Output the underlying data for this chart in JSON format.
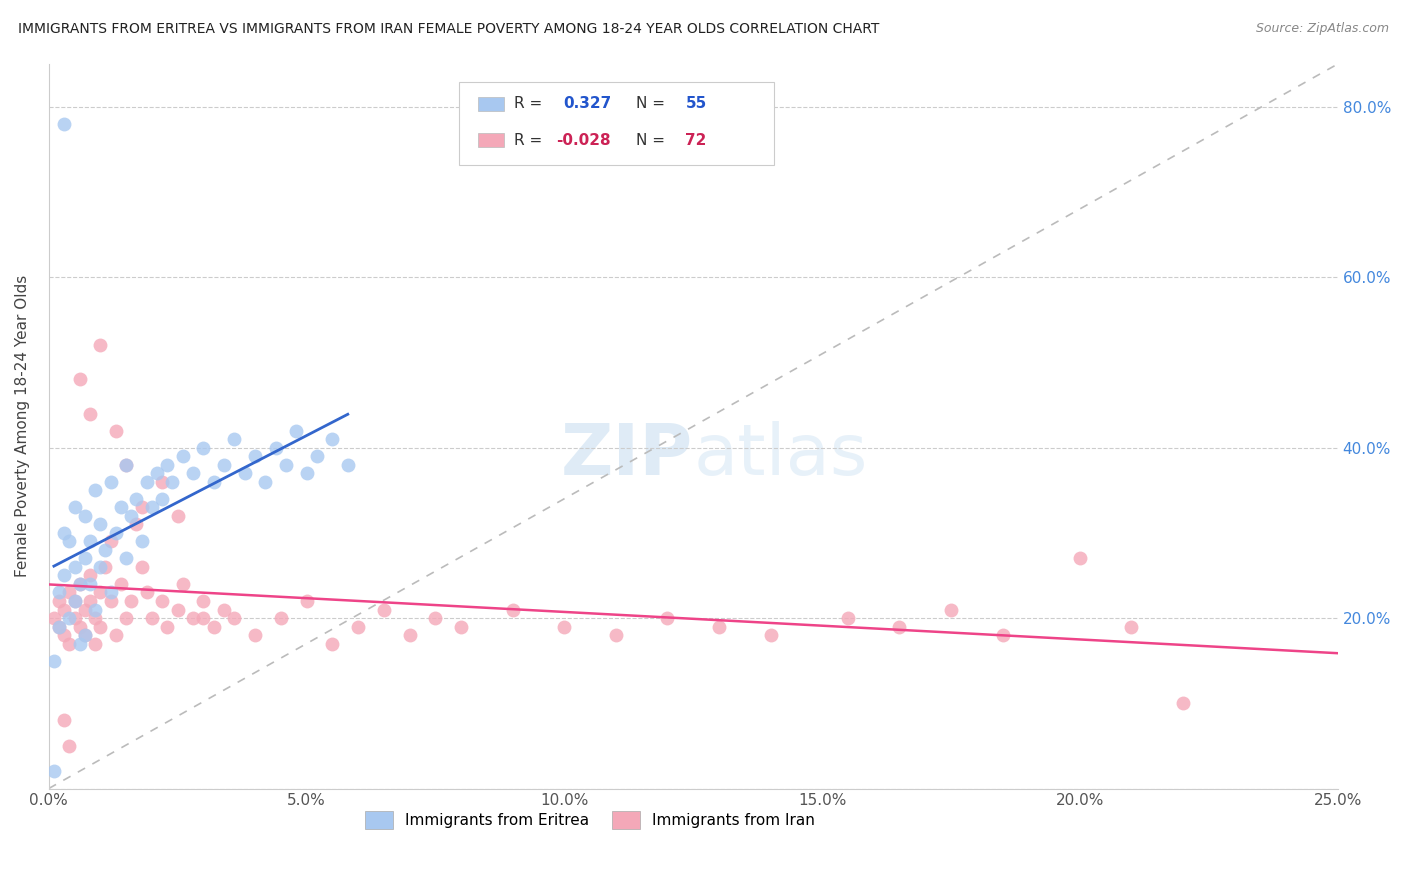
{
  "title": "IMMIGRANTS FROM ERITREA VS IMMIGRANTS FROM IRAN FEMALE POVERTY AMONG 18-24 YEAR OLDS CORRELATION CHART",
  "source": "Source: ZipAtlas.com",
  "ylabel": "Female Poverty Among 18-24 Year Olds",
  "xlim": [
    0.0,
    0.25
  ],
  "ylim": [
    0.0,
    0.85
  ],
  "eritrea_color": "#A8C8F0",
  "iran_color": "#F4A8B8",
  "eritrea_line_color": "#3366CC",
  "iran_line_color": "#EE4488",
  "diag_line_color": "#BBBBBB",
  "legend_eritrea_R": "0.327",
  "legend_eritrea_N": "55",
  "legend_iran_R": "-0.028",
  "legend_iran_N": "72",
  "background_color": "#FFFFFF",
  "eritrea_x": [
    0.003,
    0.001,
    0.002,
    0.002,
    0.003,
    0.003,
    0.004,
    0.004,
    0.005,
    0.005,
    0.005,
    0.006,
    0.006,
    0.007,
    0.007,
    0.007,
    0.008,
    0.008,
    0.009,
    0.009,
    0.01,
    0.01,
    0.011,
    0.012,
    0.012,
    0.013,
    0.014,
    0.015,
    0.015,
    0.016,
    0.017,
    0.018,
    0.019,
    0.02,
    0.021,
    0.022,
    0.023,
    0.024,
    0.026,
    0.028,
    0.03,
    0.032,
    0.034,
    0.036,
    0.038,
    0.04,
    0.042,
    0.044,
    0.046,
    0.048,
    0.05,
    0.052,
    0.055,
    0.058,
    0.001
  ],
  "eritrea_y": [
    0.78,
    0.02,
    0.19,
    0.23,
    0.25,
    0.3,
    0.2,
    0.29,
    0.22,
    0.26,
    0.33,
    0.24,
    0.17,
    0.27,
    0.32,
    0.18,
    0.24,
    0.29,
    0.21,
    0.35,
    0.26,
    0.31,
    0.28,
    0.23,
    0.36,
    0.3,
    0.33,
    0.27,
    0.38,
    0.32,
    0.34,
    0.29,
    0.36,
    0.33,
    0.37,
    0.34,
    0.38,
    0.36,
    0.39,
    0.37,
    0.4,
    0.36,
    0.38,
    0.41,
    0.37,
    0.39,
    0.36,
    0.4,
    0.38,
    0.42,
    0.37,
    0.39,
    0.41,
    0.38,
    0.15
  ],
  "iran_x": [
    0.001,
    0.002,
    0.002,
    0.003,
    0.003,
    0.004,
    0.004,
    0.005,
    0.005,
    0.006,
    0.006,
    0.007,
    0.007,
    0.008,
    0.008,
    0.009,
    0.009,
    0.01,
    0.01,
    0.011,
    0.012,
    0.012,
    0.013,
    0.014,
    0.015,
    0.016,
    0.017,
    0.018,
    0.019,
    0.02,
    0.022,
    0.023,
    0.025,
    0.026,
    0.028,
    0.03,
    0.032,
    0.034,
    0.036,
    0.04,
    0.045,
    0.05,
    0.055,
    0.06,
    0.065,
    0.07,
    0.075,
    0.08,
    0.09,
    0.1,
    0.11,
    0.12,
    0.13,
    0.14,
    0.155,
    0.165,
    0.175,
    0.185,
    0.2,
    0.21,
    0.22,
    0.006,
    0.008,
    0.01,
    0.013,
    0.015,
    0.018,
    0.022,
    0.025,
    0.03,
    0.003,
    0.004
  ],
  "iran_y": [
    0.2,
    0.19,
    0.22,
    0.21,
    0.18,
    0.23,
    0.17,
    0.2,
    0.22,
    0.19,
    0.24,
    0.21,
    0.18,
    0.22,
    0.25,
    0.2,
    0.17,
    0.23,
    0.19,
    0.26,
    0.22,
    0.29,
    0.18,
    0.24,
    0.2,
    0.22,
    0.31,
    0.26,
    0.23,
    0.2,
    0.22,
    0.19,
    0.21,
    0.24,
    0.2,
    0.22,
    0.19,
    0.21,
    0.2,
    0.18,
    0.2,
    0.22,
    0.17,
    0.19,
    0.21,
    0.18,
    0.2,
    0.19,
    0.21,
    0.19,
    0.18,
    0.2,
    0.19,
    0.18,
    0.2,
    0.19,
    0.21,
    0.18,
    0.27,
    0.19,
    0.1,
    0.48,
    0.44,
    0.52,
    0.42,
    0.38,
    0.33,
    0.36,
    0.32,
    0.2,
    0.08,
    0.05
  ]
}
